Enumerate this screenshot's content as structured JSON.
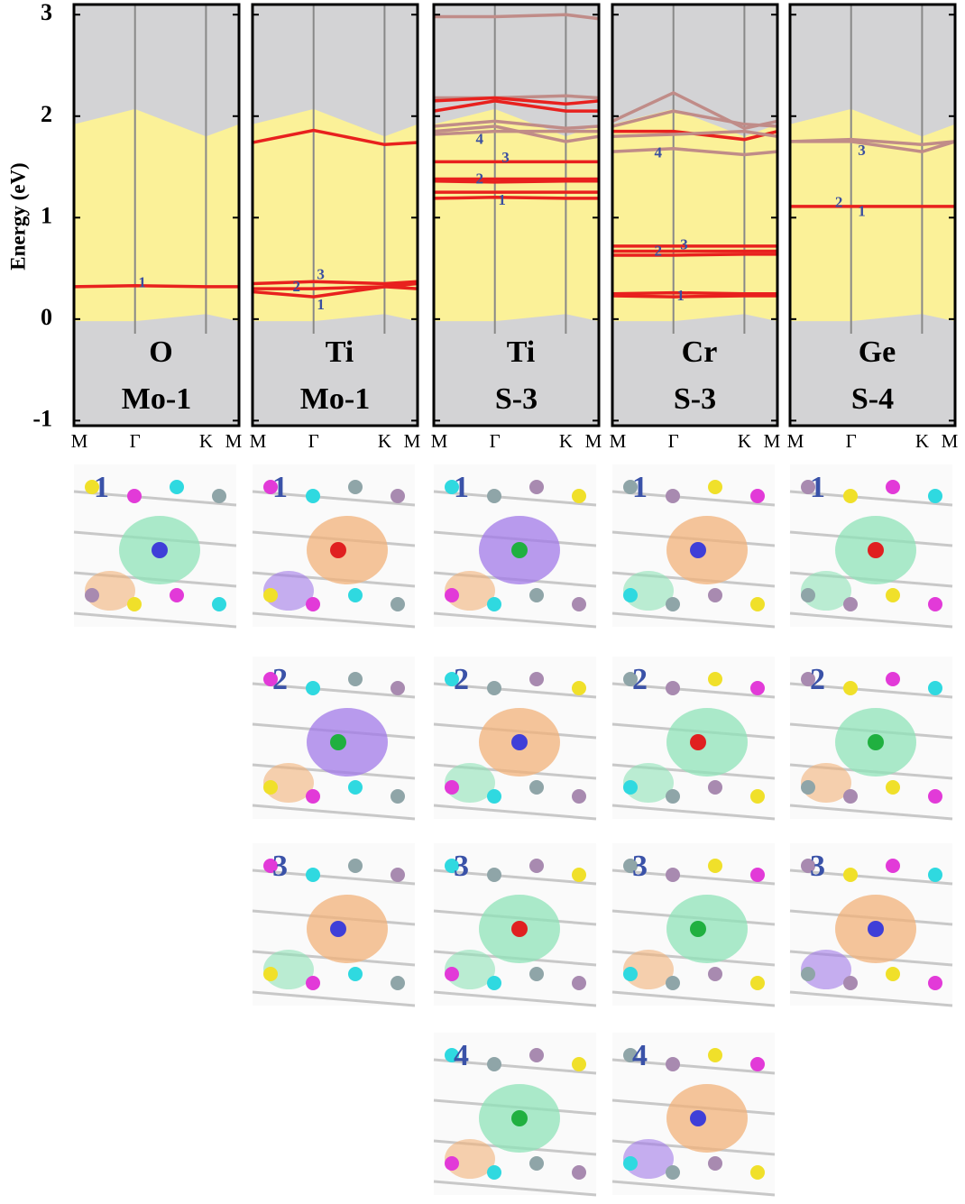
{
  "chart_data": [
    {
      "type": "band",
      "ylabel": "Energy (eV)",
      "title": "O",
      "subtitle": "Mo-1",
      "categories": [
        "M",
        "Γ",
        "K",
        "M"
      ],
      "ylim": [
        -1.05,
        3.1
      ],
      "yticks": [
        -1,
        0,
        1,
        2,
        3
      ],
      "cbm": [
        1.92,
        2.07,
        1.8,
        1.92
      ],
      "vbm": [
        -0.02,
        -0.02,
        0.05,
        -0.02
      ],
      "series": [
        {
          "color": "#e8211e",
          "values": [
            0.32,
            0.33,
            0.32,
            0.32
          ]
        }
      ],
      "band_labels": [
        {
          "text": "1",
          "x": 1.1,
          "y": 0.35
        }
      ],
      "orbital_labels": [
        "1"
      ]
    },
    {
      "type": "band",
      "title": "Ti",
      "subtitle": "Mo-1",
      "categories": [
        "M",
        "Γ",
        "K",
        "M"
      ],
      "ylim": [
        -1.05,
        3.1
      ],
      "yticks": [
        -1,
        0,
        1,
        2,
        3
      ],
      "cbm": [
        1.92,
        2.07,
        1.8,
        1.92
      ],
      "vbm": [
        -0.02,
        -0.02,
        0.05,
        -0.02
      ],
      "series": [
        {
          "color": "#e8211e",
          "values": [
            1.74,
            1.86,
            1.72,
            1.74
          ]
        },
        {
          "color": "#e8211e",
          "values": [
            0.35,
            0.37,
            0.35,
            0.37
          ]
        },
        {
          "color": "#e8211e",
          "values": [
            0.3,
            0.3,
            0.32,
            0.35
          ]
        },
        {
          "color": "#e8211e",
          "values": [
            0.27,
            0.22,
            0.32,
            0.3
          ]
        }
      ],
      "band_labels": [
        {
          "text": "2",
          "x": 0.72,
          "y": 0.31
        },
        {
          "text": "3",
          "x": 1.1,
          "y": 0.43
        },
        {
          "text": "1",
          "x": 1.1,
          "y": 0.13
        }
      ],
      "orbital_labels": [
        "1",
        "2",
        "3"
      ]
    },
    {
      "type": "band",
      "title": "Ti",
      "subtitle": "S-3",
      "categories": [
        "M",
        "Γ",
        "K",
        "M"
      ],
      "ylim": [
        -1.05,
        3.1
      ],
      "yticks": [
        -1,
        0,
        1,
        2,
        3
      ],
      "cbm": [
        1.92,
        2.07,
        1.8,
        1.92
      ],
      "vbm": [
        -0.02,
        -0.02,
        0.05,
        -0.02
      ],
      "series": [
        {
          "color": "#c08c88",
          "values": [
            2.98,
            2.98,
            3.0,
            2.96
          ]
        },
        {
          "color": "#c08c88",
          "values": [
            2.18,
            2.18,
            2.2,
            2.18
          ]
        },
        {
          "color": "#e8211e",
          "values": [
            2.05,
            2.15,
            2.05,
            2.05
          ]
        },
        {
          "color": "#e8211e",
          "values": [
            2.15,
            2.18,
            2.12,
            2.15
          ]
        },
        {
          "color": "#c08c88",
          "values": [
            1.9,
            1.95,
            1.88,
            1.9
          ]
        },
        {
          "color": "#c08c88",
          "values": [
            1.85,
            1.9,
            1.75,
            1.8
          ]
        },
        {
          "color": "#c08c88",
          "values": [
            1.82,
            1.85,
            1.85,
            1.85
          ]
        },
        {
          "color": "#e8211e",
          "values": [
            1.55,
            1.55,
            1.55,
            1.55
          ]
        },
        {
          "color": "#e8211e",
          "values": [
            1.38,
            1.38,
            1.38,
            1.38
          ]
        },
        {
          "color": "#e8211e",
          "values": [
            1.36,
            1.35,
            1.36,
            1.36
          ]
        },
        {
          "color": "#e8211e",
          "values": [
            1.25,
            1.25,
            1.25,
            1.25
          ]
        },
        {
          "color": "#e8211e",
          "values": [
            1.19,
            1.2,
            1.19,
            1.19
          ]
        }
      ],
      "band_labels": [
        {
          "text": "4",
          "x": 0.75,
          "y": 1.76
        },
        {
          "text": "3",
          "x": 1.15,
          "y": 1.58
        },
        {
          "text": "2",
          "x": 0.75,
          "y": 1.37
        },
        {
          "text": "1",
          "x": 1.1,
          "y": 1.16
        }
      ],
      "orbital_labels": [
        "1",
        "2",
        "3",
        "4"
      ]
    },
    {
      "type": "band",
      "title": "Cr",
      "subtitle": "S-3",
      "categories": [
        "M",
        "Γ",
        "K",
        "M"
      ],
      "ylim": [
        -1.05,
        3.1
      ],
      "yticks": [
        -1,
        0,
        1,
        2,
        3
      ],
      "cbm": [
        1.92,
        2.07,
        1.8,
        1.92
      ],
      "vbm": [
        -0.02,
        -0.02,
        0.05,
        -0.02
      ],
      "series": [
        {
          "color": "#c08c88",
          "values": [
            1.95,
            2.23,
            1.88,
            1.95
          ]
        },
        {
          "color": "#c08c88",
          "values": [
            1.9,
            2.05,
            1.92,
            1.9
          ]
        },
        {
          "color": "#e8211e",
          "values": [
            1.85,
            1.85,
            1.77,
            1.85
          ]
        },
        {
          "color": "#c08c88",
          "values": [
            1.8,
            1.82,
            1.85,
            1.8
          ]
        },
        {
          "color": "#c08c88",
          "values": [
            1.65,
            1.68,
            1.62,
            1.65
          ]
        },
        {
          "color": "#e8211e",
          "values": [
            0.72,
            0.72,
            0.72,
            0.72
          ]
        },
        {
          "color": "#e8211e",
          "values": [
            0.67,
            0.67,
            0.67,
            0.67
          ]
        },
        {
          "color": "#e8211e",
          "values": [
            0.63,
            0.63,
            0.64,
            0.64
          ]
        },
        {
          "color": "#e8211e",
          "values": [
            0.25,
            0.26,
            0.25,
            0.25
          ]
        },
        {
          "color": "#e8211e",
          "values": [
            0.23,
            0.22,
            0.23,
            0.23
          ]
        }
      ],
      "band_labels": [
        {
          "text": "4",
          "x": 0.75,
          "y": 1.63
        },
        {
          "text": "2",
          "x": 0.75,
          "y": 0.66
        },
        {
          "text": "3",
          "x": 1.15,
          "y": 0.72
        },
        {
          "text": "1",
          "x": 1.1,
          "y": 0.22
        }
      ],
      "orbital_labels": [
        "1",
        "2",
        "3",
        "4"
      ]
    },
    {
      "type": "band",
      "title": "Ge",
      "subtitle": "S-4",
      "categories": [
        "M",
        "Γ",
        "K",
        "M"
      ],
      "ylim": [
        -1.05,
        3.1
      ],
      "yticks": [
        -1,
        0,
        1,
        2,
        3
      ],
      "cbm": [
        1.92,
        2.07,
        1.8,
        1.92
      ],
      "vbm": [
        -0.02,
        -0.02,
        0.05,
        -0.02
      ],
      "series": [
        {
          "color": "#c08c88",
          "values": [
            1.75,
            1.77,
            1.72,
            1.75
          ]
        },
        {
          "color": "#c08c88",
          "values": [
            1.75,
            1.75,
            1.65,
            1.75
          ]
        },
        {
          "color": "#e8211e",
          "values": [
            1.11,
            1.11,
            1.11,
            1.11
          ]
        }
      ],
      "band_labels": [
        {
          "text": "3",
          "x": 1.15,
          "y": 1.65
        },
        {
          "text": "2",
          "x": 0.8,
          "y": 1.14
        },
        {
          "text": "1",
          "x": 1.15,
          "y": 1.05
        }
      ],
      "orbital_labels": [
        "1",
        "2",
        "3"
      ]
    }
  ]
}
